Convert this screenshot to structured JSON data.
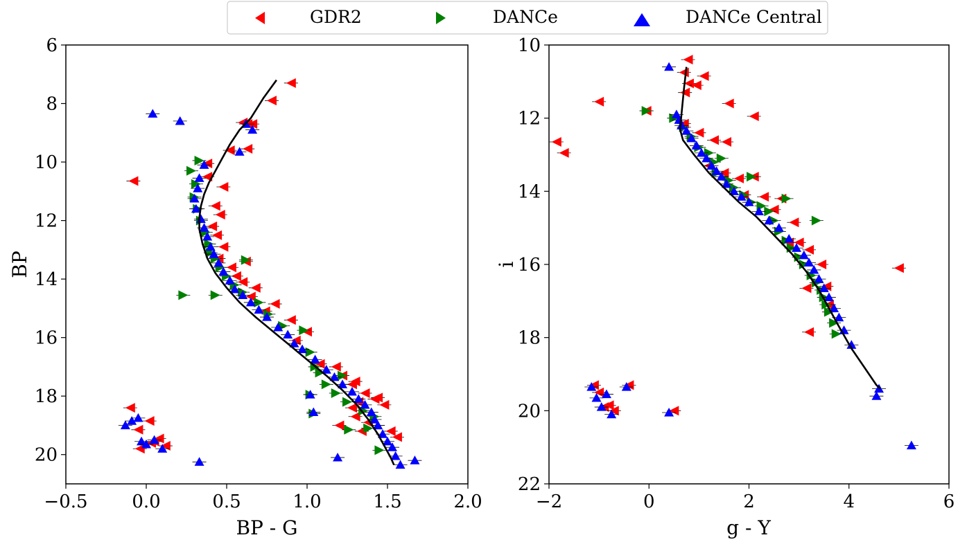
{
  "legend": {
    "placement": "top-center",
    "entries": [
      {
        "label": "GDR2",
        "color": "#ff0000",
        "marker": "triangle-left-icon"
      },
      {
        "label": "DANCe",
        "color": "#008000",
        "marker": "triangle-right-icon"
      },
      {
        "label": "DANCe Central",
        "color": "#0000ff",
        "marker": "triangle-up-icon"
      }
    ]
  },
  "chart_data": [
    {
      "type": "scatter",
      "xlabel": "BP - G",
      "ylabel": "BP",
      "xlim": [
        -0.5,
        2.0
      ],
      "ylim": [
        21,
        6
      ],
      "y_inverted": true,
      "xticks": [
        "−0.5",
        "0.0",
        "0.5",
        "1.0",
        "1.5",
        "2.0"
      ],
      "xtick_values": [
        -0.5,
        0.0,
        0.5,
        1.0,
        1.5,
        2.0
      ],
      "yticks": [
        "6",
        "8",
        "10",
        "12",
        "14",
        "16",
        "18",
        "20"
      ],
      "ytick_values": [
        6,
        8,
        10,
        12,
        14,
        16,
        18,
        20
      ],
      "grid": false,
      "line": {
        "name": "",
        "color": "#000000",
        "x": [
          0.81,
          0.73,
          0.65,
          0.58,
          0.52,
          0.47,
          0.43,
          0.39,
          0.36,
          0.34,
          0.33,
          0.33,
          0.35,
          0.38,
          0.43,
          0.5,
          0.58,
          0.68,
          0.79,
          0.9,
          1.01,
          1.12,
          1.22,
          1.31,
          1.38,
          1.44,
          1.49,
          1.52,
          1.54
        ],
        "y": [
          7.2,
          7.8,
          8.5,
          8.9,
          9.4,
          9.9,
          10.3,
          10.7,
          11.1,
          11.5,
          11.9,
          12.3,
          12.8,
          13.3,
          13.8,
          14.3,
          14.8,
          15.3,
          15.8,
          16.3,
          16.8,
          17.3,
          17.8,
          18.3,
          18.8,
          19.3,
          19.8,
          20.1,
          20.35
        ]
      },
      "series": [
        {
          "name": "GDR2",
          "color": "#ff0000",
          "marker": "triangle-left",
          "x": [
            0.9,
            0.78,
            0.6,
            0.66,
            0.63,
            0.63,
            0.52,
            -0.08,
            0.38,
            0.38,
            0.48,
            0.43,
            0.46,
            0.41,
            0.44,
            0.48,
            0.45,
            0.53,
            0.62,
            0.56,
            0.6,
            0.68,
            0.65,
            0.74,
            0.8,
            0.9,
            0.93,
            1.0,
            1.08,
            1.18,
            1.22,
            1.28,
            1.3,
            1.36,
            1.42,
            1.44,
            1.48,
            1.38,
            1.34,
            1.3,
            1.2,
            1.28,
            1.32,
            1.52,
            1.56,
            -0.1,
            -0.05,
            0.02,
            -0.04,
            0.08,
            0.12,
            0.05,
            0.03
          ],
          "y": [
            7.3,
            7.9,
            8.65,
            8.7,
            9.55,
            8.7,
            9.6,
            10.65,
            10.05,
            10.5,
            10.85,
            11.5,
            11.8,
            12.2,
            12.5,
            12.9,
            13.3,
            13.6,
            13.4,
            13.9,
            14.1,
            14.3,
            14.6,
            15.1,
            14.85,
            15.4,
            16.1,
            15.8,
            16.9,
            17.0,
            17.3,
            17.6,
            17.5,
            17.9,
            18.1,
            18.05,
            18.3,
            18.9,
            19.2,
            18.7,
            19.0,
            18.4,
            18.2,
            19.2,
            19.4,
            18.4,
            19.15,
            18.85,
            19.8,
            19.45,
            19.7,
            19.55,
            19.6
          ]
        },
        {
          "name": "DANCe",
          "color": "#008000",
          "marker": "triangle-right",
          "x": [
            0.33,
            0.28,
            0.31,
            0.3,
            0.32,
            0.34,
            0.37,
            0.39,
            0.4,
            0.43,
            0.46,
            0.5,
            0.55,
            0.6,
            0.62,
            0.7,
            0.76,
            0.85,
            0.98,
            1.02,
            1.08,
            1.05,
            1.12,
            1.18,
            1.22,
            1.25,
            1.35,
            1.42,
            1.02,
            1.04,
            1.26,
            1.38,
            1.45,
            0.23,
            0.43
          ],
          "y": [
            9.95,
            10.3,
            10.75,
            11.2,
            11.6,
            12.0,
            12.4,
            12.8,
            13.1,
            13.3,
            13.6,
            13.9,
            14.2,
            14.45,
            13.35,
            14.8,
            15.2,
            15.6,
            15.75,
            16.5,
            17.2,
            17.0,
            17.6,
            17.9,
            17.3,
            18.2,
            18.5,
            18.7,
            17.95,
            18.6,
            19.15,
            19.1,
            19.85,
            14.55,
            14.55
          ]
        },
        {
          "name": "DANCe Central",
          "color": "#0000ff",
          "marker": "triangle-up",
          "x": [
            0.04,
            0.21,
            0.62,
            0.66,
            0.58,
            0.36,
            0.33,
            0.32,
            0.3,
            0.31,
            0.34,
            0.36,
            0.38,
            0.4,
            0.42,
            0.45,
            0.48,
            0.52,
            0.55,
            0.6,
            0.65,
            0.7,
            0.75,
            0.82,
            0.88,
            0.92,
            0.97,
            1.05,
            1.12,
            1.17,
            1.22,
            1.28,
            1.32,
            1.36,
            1.4,
            1.42,
            1.44,
            1.47,
            1.5,
            1.53,
            1.55,
            1.58,
            1.67,
            1.19,
            1.02,
            1.04,
            1.44,
            0.33,
            -0.13,
            -0.09,
            -0.05,
            -0.03,
            0.0,
            0.05,
            0.1
          ],
          "y": [
            8.35,
            8.6,
            8.7,
            8.9,
            9.65,
            10.1,
            10.55,
            10.9,
            11.25,
            11.6,
            11.95,
            12.25,
            12.55,
            12.9,
            13.15,
            13.45,
            13.75,
            14.05,
            14.35,
            14.55,
            14.8,
            15.05,
            15.3,
            15.65,
            15.9,
            16.2,
            16.4,
            16.75,
            17.1,
            17.35,
            17.6,
            17.85,
            18.1,
            18.3,
            18.55,
            18.8,
            19.0,
            19.3,
            19.55,
            19.75,
            20.05,
            20.35,
            20.2,
            20.1,
            17.95,
            18.55,
            19.0,
            20.25,
            19.0,
            18.85,
            18.75,
            19.55,
            19.65,
            19.5,
            19.8
          ]
        }
      ]
    },
    {
      "type": "scatter",
      "xlabel": "g - Y",
      "ylabel": "i",
      "xlim": [
        -2,
        6
      ],
      "ylim": [
        22,
        10
      ],
      "y_inverted": true,
      "xticks": [
        "−2",
        "0",
        "2",
        "4",
        "6"
      ],
      "xtick_values": [
        -2,
        0,
        2,
        4,
        6
      ],
      "yticks": [
        "10",
        "12",
        "14",
        "16",
        "18",
        "20",
        "22"
      ],
      "ytick_values": [
        10,
        12,
        14,
        16,
        18,
        20,
        22
      ],
      "grid": false,
      "line": {
        "name": "",
        "color": "#000000",
        "x": [
          0.75,
          0.7,
          0.65,
          0.62,
          0.68,
          0.9,
          1.2,
          1.5,
          1.8,
          2.15,
          2.5,
          2.85,
          3.15,
          3.4,
          3.6,
          3.8,
          4.05,
          4.3,
          4.55,
          4.63
        ],
        "y": [
          10.6,
          11.2,
          11.9,
          12.3,
          12.6,
          13.0,
          13.5,
          13.9,
          14.3,
          14.7,
          15.2,
          15.7,
          16.2,
          16.7,
          17.2,
          17.7,
          18.3,
          18.8,
          19.3,
          19.4
        ]
      },
      "series": [
        {
          "name": "GDR2",
          "color": "#ff0000",
          "marker": "triangle-left",
          "x": [
            0.78,
            0.7,
            0.8,
            0.95,
            1.1,
            0.72,
            -1.0,
            -1.85,
            -1.7,
            1.6,
            2.1,
            -0.05,
            0.7,
            1.0,
            1.3,
            1.55,
            1.2,
            1.5,
            1.8,
            2.1,
            1.9,
            2.3,
            2.5,
            2.65,
            2.9,
            2.8,
            3.0,
            3.2,
            3.45,
            3.55,
            3.15,
            3.6,
            3.2,
            5.0,
            -1.1,
            -1.0,
            -0.9,
            -0.8,
            -0.7,
            -0.4,
            0.5
          ],
          "y": [
            10.4,
            10.75,
            11.05,
            11.1,
            10.85,
            11.3,
            11.55,
            12.65,
            12.95,
            11.6,
            11.95,
            11.8,
            12.15,
            12.4,
            12.6,
            12.65,
            13.3,
            13.5,
            13.65,
            13.6,
            14.1,
            14.15,
            14.5,
            14.2,
            14.85,
            15.4,
            15.4,
            15.6,
            16.0,
            16.6,
            16.65,
            17.1,
            17.85,
            16.1,
            19.3,
            19.5,
            19.9,
            19.85,
            20.0,
            19.3,
            20.0
          ]
        },
        {
          "name": "DANCe",
          "color": "#008000",
          "marker": "triangle-right",
          "x": [
            -0.05,
            0.5,
            0.7,
            0.85,
            1.0,
            1.2,
            1.3,
            1.45,
            1.35,
            1.6,
            1.7,
            1.9,
            2.05,
            2.25,
            2.4,
            2.5,
            2.6,
            2.75,
            2.85,
            3.0,
            3.1,
            3.25,
            3.35,
            3.45,
            3.5,
            3.55,
            3.6,
            3.7,
            3.75,
            2.05,
            2.75,
            3.35
          ],
          "y": [
            11.8,
            12.0,
            12.25,
            12.5,
            12.8,
            12.95,
            13.2,
            13.1,
            13.5,
            13.7,
            13.9,
            14.1,
            14.3,
            14.4,
            14.55,
            14.8,
            15.1,
            15.35,
            15.55,
            15.8,
            16.0,
            16.3,
            16.5,
            16.7,
            16.9,
            17.1,
            17.3,
            17.6,
            17.9,
            13.6,
            14.2,
            14.8
          ]
        },
        {
          "name": "DANCe Central",
          "color": "#0000ff",
          "marker": "triangle-up",
          "x": [
            0.4,
            0.55,
            0.6,
            0.65,
            0.75,
            0.85,
            0.95,
            1.05,
            1.15,
            1.25,
            1.35,
            1.45,
            1.55,
            1.7,
            1.85,
            2.0,
            2.2,
            2.4,
            2.6,
            2.8,
            2.95,
            3.1,
            3.2,
            3.3,
            3.4,
            3.5,
            3.6,
            3.7,
            3.8,
            3.9,
            4.05,
            4.55,
            4.6,
            5.25,
            -1.15,
            -1.05,
            -0.95,
            -0.85,
            -0.75,
            -0.45,
            0.4
          ],
          "y": [
            10.6,
            11.9,
            12.05,
            12.2,
            12.35,
            12.55,
            12.75,
            12.95,
            13.1,
            13.3,
            13.45,
            13.6,
            13.8,
            14.0,
            14.15,
            14.3,
            14.55,
            14.8,
            15.0,
            15.3,
            15.55,
            15.75,
            15.95,
            16.15,
            16.4,
            16.65,
            16.9,
            17.2,
            17.45,
            17.8,
            18.2,
            19.6,
            19.4,
            20.95,
            19.35,
            19.65,
            19.9,
            19.55,
            20.1,
            19.35,
            20.05
          ]
        }
      ]
    }
  ]
}
